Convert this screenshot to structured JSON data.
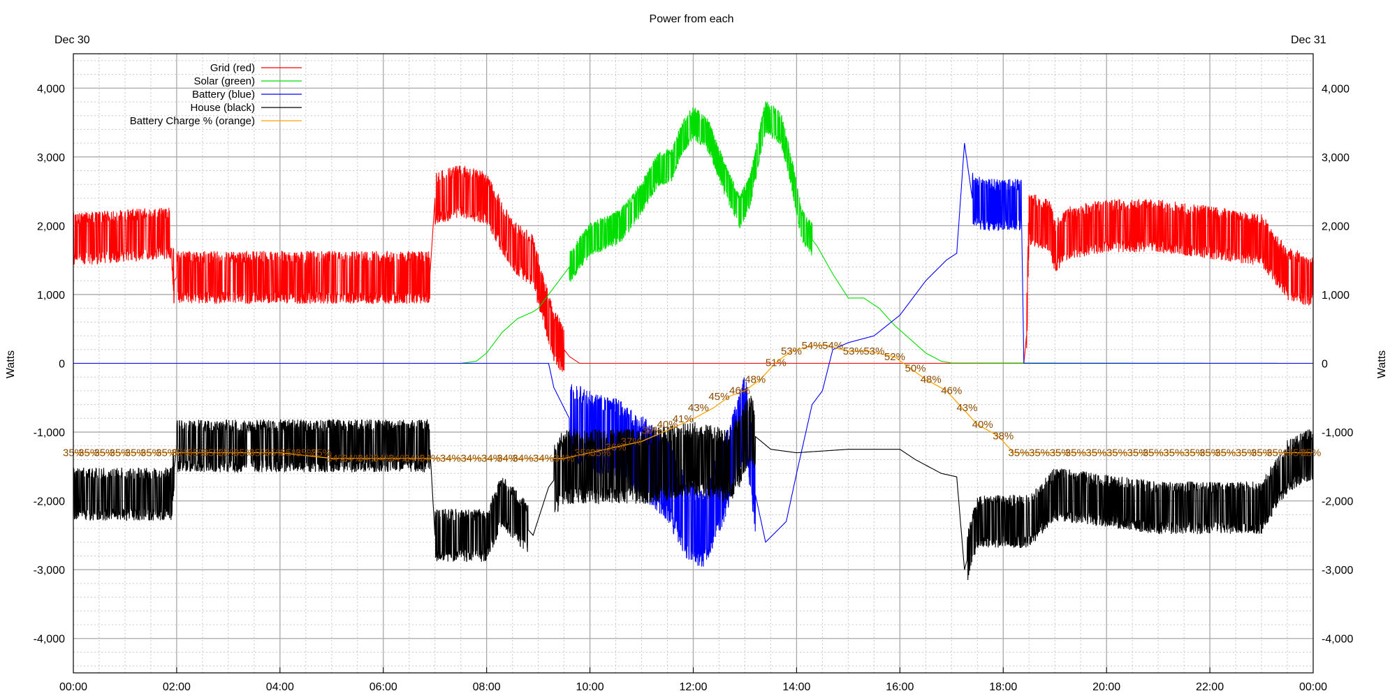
{
  "chart_data": {
    "type": "line",
    "title": "Power from each",
    "date_left": "Dec 30",
    "date_right": "Dec 31",
    "ylabel": "Watts",
    "ylabel_right": "Watts",
    "xlim": [
      "00:00",
      "24:00"
    ],
    "ylim": [
      -4500,
      4500
    ],
    "x_ticks": [
      "00:00",
      "02:00",
      "04:00",
      "06:00",
      "08:00",
      "10:00",
      "12:00",
      "14:00",
      "16:00",
      "18:00",
      "20:00",
      "22:00",
      "00:00"
    ],
    "y_ticks": [
      "4,000",
      "3,000",
      "2,000",
      "1,000",
      "0",
      "-1,000",
      "-2,000",
      "-3,000",
      "-4,000"
    ],
    "grid": true,
    "legend_position": "top-left",
    "series": [
      {
        "name": "Grid (red)",
        "color": "#ff0000",
        "points": [
          [
            0.0,
            1800
          ],
          [
            1.9,
            1900
          ],
          [
            1.95,
            1200
          ],
          [
            2.0,
            1250
          ],
          [
            3.0,
            1250
          ],
          [
            4.0,
            1250
          ],
          [
            5.0,
            1250
          ],
          [
            6.0,
            1250
          ],
          [
            6.9,
            1250
          ],
          [
            7.0,
            2400
          ],
          [
            7.5,
            2500
          ],
          [
            8.0,
            2400
          ],
          [
            8.5,
            1700
          ],
          [
            8.9,
            1500
          ],
          [
            9.0,
            1200
          ],
          [
            9.3,
            400
          ],
          [
            9.6,
            100
          ],
          [
            9.8,
            0
          ],
          [
            12.0,
            0
          ],
          [
            14.0,
            0
          ],
          [
            16.0,
            0
          ],
          [
            17.0,
            0
          ],
          [
            18.0,
            0
          ],
          [
            18.4,
            0
          ],
          [
            18.45,
            400
          ],
          [
            18.5,
            2100
          ],
          [
            18.9,
            2000
          ],
          [
            19.0,
            1700
          ],
          [
            19.3,
            1900
          ],
          [
            20.0,
            2000
          ],
          [
            21.0,
            2000
          ],
          [
            22.0,
            1900
          ],
          [
            23.0,
            1800
          ],
          [
            23.5,
            1300
          ],
          [
            24.0,
            1200
          ]
        ],
        "oscillation": [
          [
            0,
            1.95,
            700
          ],
          [
            2.0,
            6.9,
            700
          ],
          [
            7.0,
            8.3,
            700
          ],
          [
            8.3,
            9.5,
            700
          ],
          [
            18.45,
            24,
            700
          ]
        ]
      },
      {
        "name": "Solar (green)",
        "color": "#00dd00",
        "points": [
          [
            0.0,
            0
          ],
          [
            7.5,
            0
          ],
          [
            7.8,
            30
          ],
          [
            8.0,
            150
          ],
          [
            8.3,
            450
          ],
          [
            8.6,
            650
          ],
          [
            8.9,
            750
          ],
          [
            9.0,
            800
          ],
          [
            9.2,
            1000
          ],
          [
            9.5,
            1300
          ],
          [
            9.8,
            1600
          ],
          [
            10.0,
            1800
          ],
          [
            10.3,
            1900
          ],
          [
            10.6,
            2000
          ],
          [
            11.0,
            2400
          ],
          [
            11.3,
            2800
          ],
          [
            11.6,
            2900
          ],
          [
            11.8,
            3300
          ],
          [
            12.0,
            3500
          ],
          [
            12.3,
            3300
          ],
          [
            12.6,
            2700
          ],
          [
            12.9,
            2200
          ],
          [
            13.1,
            2500
          ],
          [
            13.4,
            3600
          ],
          [
            13.7,
            3400
          ],
          [
            13.9,
            2800
          ],
          [
            14.1,
            2000
          ],
          [
            14.4,
            1700
          ],
          [
            14.7,
            1300
          ],
          [
            15.0,
            950
          ],
          [
            15.3,
            950
          ],
          [
            15.6,
            800
          ],
          [
            15.9,
            550
          ],
          [
            16.2,
            350
          ],
          [
            16.5,
            150
          ],
          [
            16.8,
            30
          ],
          [
            17.0,
            5
          ],
          [
            24.0,
            0
          ]
        ],
        "oscillation": [
          [
            9.6,
            14.3,
            450
          ]
        ]
      },
      {
        "name": "Battery (blue)",
        "color": "#0000ff",
        "points": [
          [
            0.0,
            0
          ],
          [
            9.2,
            0
          ],
          [
            9.3,
            -350
          ],
          [
            9.6,
            -800
          ],
          [
            10.0,
            -1000
          ],
          [
            10.5,
            -1100
          ],
          [
            11.0,
            -1350
          ],
          [
            11.5,
            -1700
          ],
          [
            11.9,
            -2300
          ],
          [
            12.2,
            -2400
          ],
          [
            12.6,
            -1700
          ],
          [
            12.9,
            -1000
          ],
          [
            13.0,
            -700
          ],
          [
            13.2,
            -1900
          ],
          [
            13.4,
            -2600
          ],
          [
            13.8,
            -2300
          ],
          [
            14.0,
            -1600
          ],
          [
            14.3,
            -600
          ],
          [
            14.5,
            -400
          ],
          [
            14.7,
            200
          ],
          [
            15.0,
            300
          ],
          [
            15.5,
            400
          ],
          [
            16.0,
            700
          ],
          [
            16.5,
            1200
          ],
          [
            16.9,
            1500
          ],
          [
            17.1,
            1600
          ],
          [
            17.25,
            3200
          ],
          [
            17.4,
            2400
          ],
          [
            17.6,
            2300
          ],
          [
            18.0,
            2300
          ],
          [
            18.35,
            2300
          ],
          [
            18.4,
            0
          ],
          [
            24.0,
            0
          ]
        ],
        "oscillation": [
          [
            9.6,
            13.2,
            1100
          ],
          [
            17.4,
            18.35,
            700
          ]
        ]
      },
      {
        "name": "House (black)",
        "color": "#000000",
        "points": [
          [
            0.0,
            -1900
          ],
          [
            1.9,
            -1900
          ],
          [
            2.0,
            -1200
          ],
          [
            6.9,
            -1200
          ],
          [
            7.0,
            -2500
          ],
          [
            8.0,
            -2500
          ],
          [
            8.3,
            -2000
          ],
          [
            8.9,
            -2500
          ],
          [
            9.2,
            -1800
          ],
          [
            9.5,
            -1500
          ],
          [
            10.0,
            -1500
          ],
          [
            11.0,
            -1500
          ],
          [
            12.0,
            -1400
          ],
          [
            12.7,
            -1500
          ],
          [
            13.1,
            -1000
          ],
          [
            13.5,
            -1250
          ],
          [
            14.0,
            -1300
          ],
          [
            15.0,
            -1250
          ],
          [
            16.0,
            -1250
          ],
          [
            16.3,
            -1400
          ],
          [
            16.8,
            -1600
          ],
          [
            17.1,
            -1650
          ],
          [
            17.25,
            -3000
          ],
          [
            17.5,
            -2300
          ],
          [
            18.0,
            -2300
          ],
          [
            18.5,
            -2300
          ],
          [
            19.0,
            -1900
          ],
          [
            20.0,
            -2000
          ],
          [
            21.0,
            -2100
          ],
          [
            22.0,
            -2100
          ],
          [
            23.0,
            -2100
          ],
          [
            23.5,
            -1500
          ],
          [
            24.0,
            -1300
          ]
        ],
        "oscillation": [
          [
            0,
            1.95,
            700
          ],
          [
            2.0,
            6.9,
            700
          ],
          [
            7.0,
            8.8,
            700
          ],
          [
            9.3,
            13.2,
            1000
          ],
          [
            17.3,
            24,
            700
          ]
        ]
      }
    ],
    "battery_charge": {
      "name": "Battery Charge % (orange)",
      "color": "#ffa500",
      "label_color": "#8b4a00",
      "y_axis_value": -1300,
      "points": [
        [
          0.0,
          35
        ],
        [
          2.0,
          35
        ],
        [
          4.0,
          35
        ],
        [
          5.0,
          34
        ],
        [
          7.0,
          34
        ],
        [
          9.0,
          34
        ],
        [
          9.5,
          34
        ],
        [
          10.0,
          35
        ],
        [
          10.5,
          36
        ],
        [
          11.0,
          37
        ],
        [
          11.5,
          39
        ],
        [
          12.0,
          41
        ],
        [
          12.4,
          43
        ],
        [
          12.7,
          45
        ],
        [
          13.0,
          46
        ],
        [
          13.3,
          48
        ],
        [
          13.6,
          51
        ],
        [
          13.9,
          53
        ],
        [
          14.3,
          54
        ],
        [
          14.6,
          54
        ],
        [
          15.0,
          53
        ],
        [
          15.4,
          53
        ],
        [
          15.9,
          52
        ],
        [
          16.2,
          50
        ],
        [
          16.5,
          48
        ],
        [
          16.9,
          46
        ],
        [
          17.2,
          43
        ],
        [
          17.5,
          40
        ],
        [
          17.9,
          38
        ],
        [
          18.2,
          35
        ],
        [
          19.0,
          35
        ],
        [
          21.0,
          35
        ],
        [
          24.0,
          35
        ]
      ],
      "labels": [
        [
          0.0,
          "35%"
        ],
        [
          0.3,
          "35%"
        ],
        [
          0.6,
          "35%"
        ],
        [
          0.9,
          "35%"
        ],
        [
          1.2,
          "35%"
        ],
        [
          1.5,
          "35%"
        ],
        [
          1.8,
          "35%"
        ],
        [
          2.1,
          "35%"
        ],
        [
          2.4,
          "35%"
        ],
        [
          2.7,
          "35%"
        ],
        [
          3.0,
          "35%"
        ],
        [
          3.3,
          "35%"
        ],
        [
          3.6,
          "35%"
        ],
        [
          3.9,
          "35%"
        ],
        [
          4.2,
          "35%"
        ],
        [
          4.5,
          "35%"
        ],
        [
          4.8,
          "35%"
        ],
        [
          5.1,
          "34%"
        ],
        [
          5.4,
          "34%"
        ],
        [
          5.7,
          "34%"
        ],
        [
          6.0,
          "34%"
        ],
        [
          6.3,
          "34%"
        ],
        [
          6.6,
          "34%"
        ],
        [
          6.9,
          "34%"
        ],
        [
          7.3,
          "34%"
        ],
        [
          7.7,
          "34%"
        ],
        [
          8.1,
          "34%"
        ],
        [
          8.4,
          "34%"
        ],
        [
          8.7,
          "34%"
        ],
        [
          9.1,
          "34%"
        ],
        [
          9.5,
          "34%"
        ],
        [
          9.9,
          "35%"
        ],
        [
          10.2,
          "35%"
        ],
        [
          10.5,
          "36%"
        ],
        [
          10.8,
          "37%"
        ],
        [
          11.2,
          "39%"
        ],
        [
          11.5,
          "40%"
        ],
        [
          11.8,
          "41%"
        ],
        [
          12.1,
          "43%"
        ],
        [
          12.5,
          "45%"
        ],
        [
          12.9,
          "46%"
        ],
        [
          13.2,
          "48%"
        ],
        [
          13.6,
          "51%"
        ],
        [
          13.9,
          "53%"
        ],
        [
          14.3,
          "54%"
        ],
        [
          14.7,
          "54%"
        ],
        [
          15.1,
          "53%"
        ],
        [
          15.5,
          "53%"
        ],
        [
          15.9,
          "52%"
        ],
        [
          16.3,
          "50%"
        ],
        [
          16.6,
          "48%"
        ],
        [
          17.0,
          "46%"
        ],
        [
          17.3,
          "43%"
        ],
        [
          17.6,
          "40%"
        ],
        [
          18.0,
          "38%"
        ],
        [
          18.3,
          "35%"
        ],
        [
          18.7,
          "35%"
        ],
        [
          19.1,
          "35%"
        ],
        [
          19.4,
          "35%"
        ],
        [
          19.8,
          "35%"
        ],
        [
          20.2,
          "35%"
        ],
        [
          20.6,
          "35%"
        ],
        [
          20.9,
          "35%"
        ],
        [
          21.3,
          "35%"
        ],
        [
          21.7,
          "35%"
        ],
        [
          22.0,
          "35%"
        ],
        [
          22.3,
          "35%"
        ],
        [
          22.7,
          "35%"
        ],
        [
          23.0,
          "35%"
        ],
        [
          23.3,
          "35%"
        ],
        [
          23.7,
          "35%"
        ],
        [
          23.95,
          "35%"
        ]
      ]
    }
  }
}
